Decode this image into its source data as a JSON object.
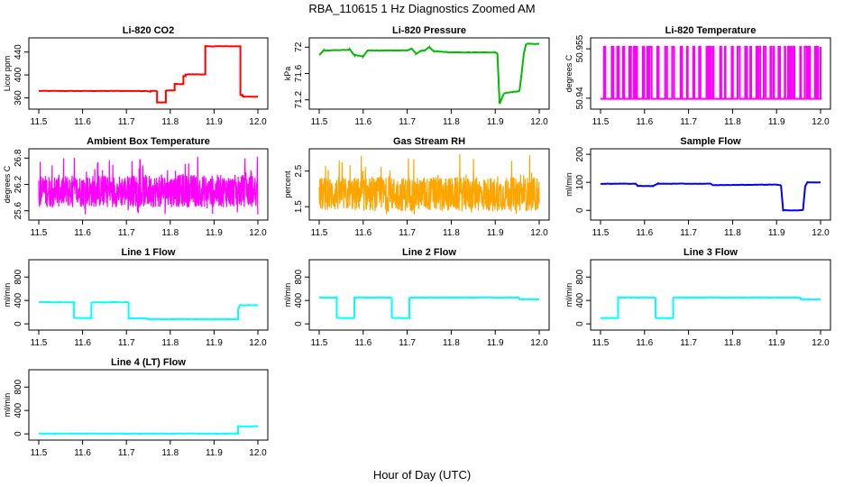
{
  "figure": {
    "title": "RBA_110615  1 Hz Diagnostics Zoomed AM",
    "xlabel": "Hour of Day (UTC)"
  },
  "chart_data": [
    {
      "type": "line",
      "title": "Li-820 CO2",
      "ylabel": "Licor ppm",
      "xlim": [
        11.5,
        12.0
      ],
      "ylim": [
        345,
        460
      ],
      "yticks": [
        360,
        400,
        440
      ],
      "xticks": [
        11.5,
        11.6,
        11.7,
        11.8,
        11.9,
        12.0
      ],
      "color": "#ff0000",
      "series": [
        {
          "x": [
            11.5,
            11.75,
            11.75,
            11.755,
            11.755,
            11.77,
            11.77,
            11.79,
            11.79,
            11.81,
            11.81,
            11.83,
            11.83,
            11.835,
            11.835,
            11.88,
            11.88,
            11.96,
            11.96,
            11.965,
            11.965,
            12.0
          ],
          "y": [
            372,
            372,
            371,
            371,
            372,
            372,
            352,
            352,
            373,
            373,
            384,
            384,
            398,
            398,
            401,
            401,
            450,
            450,
            365,
            365,
            362,
            362
          ]
        }
      ]
    },
    {
      "type": "line",
      "title": "Li-820 Pressure",
      "ylabel": "kPa",
      "xlim": [
        11.5,
        12.0
      ],
      "ylim": [
        71.1,
        72.1
      ],
      "yticks": [
        71.2,
        71.6,
        72.0
      ],
      "xticks": [
        11.5,
        11.6,
        11.7,
        11.8,
        11.9,
        12.0
      ],
      "color": "#00bb00",
      "series": [
        {
          "x": [
            11.5,
            11.51,
            11.57,
            11.58,
            11.6,
            11.61,
            11.7,
            11.71,
            11.72,
            11.73,
            11.74,
            11.75,
            11.76,
            11.8,
            11.9,
            11.905,
            11.91,
            11.92,
            11.94,
            11.955,
            11.96,
            11.965,
            11.97,
            12.0
          ],
          "y": [
            71.88,
            71.95,
            71.96,
            71.88,
            71.86,
            71.95,
            71.95,
            71.98,
            71.9,
            71.94,
            71.95,
            72.0,
            71.94,
            71.92,
            71.92,
            71.9,
            71.14,
            71.3,
            71.32,
            71.33,
            71.6,
            71.9,
            72.05,
            72.05
          ]
        }
      ]
    },
    {
      "type": "line",
      "title": "Li-820 Temperature",
      "ylabel": "degrees C",
      "xlim": [
        11.5,
        12.0
      ],
      "ylim": [
        50.9375,
        50.9575
      ],
      "yticks": [
        50.94,
        50.955
      ],
      "xticks": [
        11.5,
        11.6,
        11.7,
        11.8,
        11.9,
        12.0
      ],
      "color": "#ff00ff",
      "series": [
        {
          "levels": [
            50.9398,
            50.9556
          ],
          "description": "toggles between two levels"
        }
      ]
    },
    {
      "type": "line",
      "title": "Ambient Box Temperature",
      "ylabel": "degrees C",
      "xlim": [
        11.5,
        12.0
      ],
      "ylim": [
        25.45,
        26.95
      ],
      "yticks": [
        25.6,
        26.2,
        26.8
      ],
      "xticks": [
        11.5,
        11.6,
        11.7,
        11.8,
        11.9,
        12.0
      ],
      "color": "#ff00ff",
      "series": [
        {
          "mean": 26.05,
          "range": [
            25.5,
            26.85
          ]
        }
      ]
    },
    {
      "type": "line",
      "title": "Gas Stream RH",
      "ylabel": "percent",
      "xlim": [
        11.5,
        12.0
      ],
      "ylim": [
        1.2,
        3.05
      ],
      "yticks": [
        1.5,
        2.5
      ],
      "xticks": [
        11.5,
        11.6,
        11.7,
        11.8,
        11.9,
        12.0
      ],
      "color": "#ffa500",
      "series": [
        {
          "mean": 1.85,
          "range": [
            1.25,
            3.0
          ]
        }
      ]
    },
    {
      "type": "line",
      "title": "Sample Flow",
      "ylabel": "ml/min",
      "xlim": [
        11.5,
        12.0
      ],
      "ylim": [
        -25,
        210
      ],
      "yticks": [
        0,
        100,
        200
      ],
      "xticks": [
        11.5,
        11.6,
        11.7,
        11.8,
        11.9,
        12.0
      ],
      "color": "#0000ff",
      "series": [
        {
          "x": [
            11.5,
            11.58,
            11.585,
            11.62,
            11.63,
            11.75,
            11.755,
            11.9,
            11.91,
            11.915,
            11.96,
            11.965,
            11.97,
            12.0
          ],
          "y": [
            95,
            95,
            87,
            87,
            95,
            95,
            90,
            92,
            90,
            0,
            0,
            85,
            100,
            100
          ]
        }
      ]
    },
    {
      "type": "line",
      "title": "Line 1 Flow",
      "ylabel": "ml/min",
      "xlim": [
        11.5,
        12.0
      ],
      "ylim": [
        -60,
        1050
      ],
      "yticks": [
        0,
        400,
        800
      ],
      "xticks": [
        11.5,
        11.6,
        11.7,
        11.8,
        11.9,
        12.0
      ],
      "color": "#00ffff",
      "series": [
        {
          "x": [
            11.5,
            11.58,
            11.58,
            11.62,
            11.62,
            11.705,
            11.705,
            11.745,
            11.745,
            11.955,
            11.955,
            11.96,
            11.96,
            12.0
          ],
          "y": [
            370,
            370,
            100,
            100,
            370,
            370,
            95,
            95,
            80,
            80,
            250,
            330,
            320,
            320
          ]
        }
      ]
    },
    {
      "type": "line",
      "title": "Line 2 Flow",
      "ylabel": "ml/min",
      "xlim": [
        11.5,
        12.0
      ],
      "ylim": [
        -60,
        1050
      ],
      "yticks": [
        0,
        400,
        800
      ],
      "xticks": [
        11.5,
        11.6,
        11.7,
        11.8,
        11.9,
        12.0
      ],
      "color": "#00ffff",
      "series": [
        {
          "x": [
            11.5,
            11.54,
            11.54,
            11.58,
            11.58,
            11.665,
            11.665,
            11.705,
            11.705,
            11.955,
            11.955,
            12.0
          ],
          "y": [
            450,
            450,
            100,
            100,
            450,
            450,
            100,
            100,
            450,
            450,
            420,
            420
          ]
        }
      ]
    },
    {
      "type": "line",
      "title": "Line 3 Flow",
      "ylabel": "ml/min",
      "xlim": [
        11.5,
        12.0
      ],
      "ylim": [
        -60,
        1050
      ],
      "yticks": [
        0,
        400,
        800
      ],
      "xticks": [
        11.5,
        11.6,
        11.7,
        11.8,
        11.9,
        12.0
      ],
      "color": "#00ffff",
      "series": [
        {
          "x": [
            11.5,
            11.54,
            11.54,
            11.625,
            11.625,
            11.665,
            11.665,
            11.955,
            11.955,
            12.0
          ],
          "y": [
            100,
            100,
            450,
            450,
            100,
            100,
            450,
            450,
            420,
            420
          ]
        }
      ]
    },
    {
      "type": "line",
      "title": "Line 4 (LT) Flow",
      "ylabel": "ml/min",
      "xlim": [
        11.5,
        12.0
      ],
      "ylim": [
        -60,
        1050
      ],
      "yticks": [
        0,
        400,
        800
      ],
      "xticks": [
        11.5,
        11.6,
        11.7,
        11.8,
        11.9,
        12.0
      ],
      "color": "#00ffff",
      "series": [
        {
          "x": [
            11.5,
            11.955,
            11.955,
            12.0
          ],
          "y": [
            5,
            5,
            130,
            130
          ]
        }
      ]
    }
  ]
}
